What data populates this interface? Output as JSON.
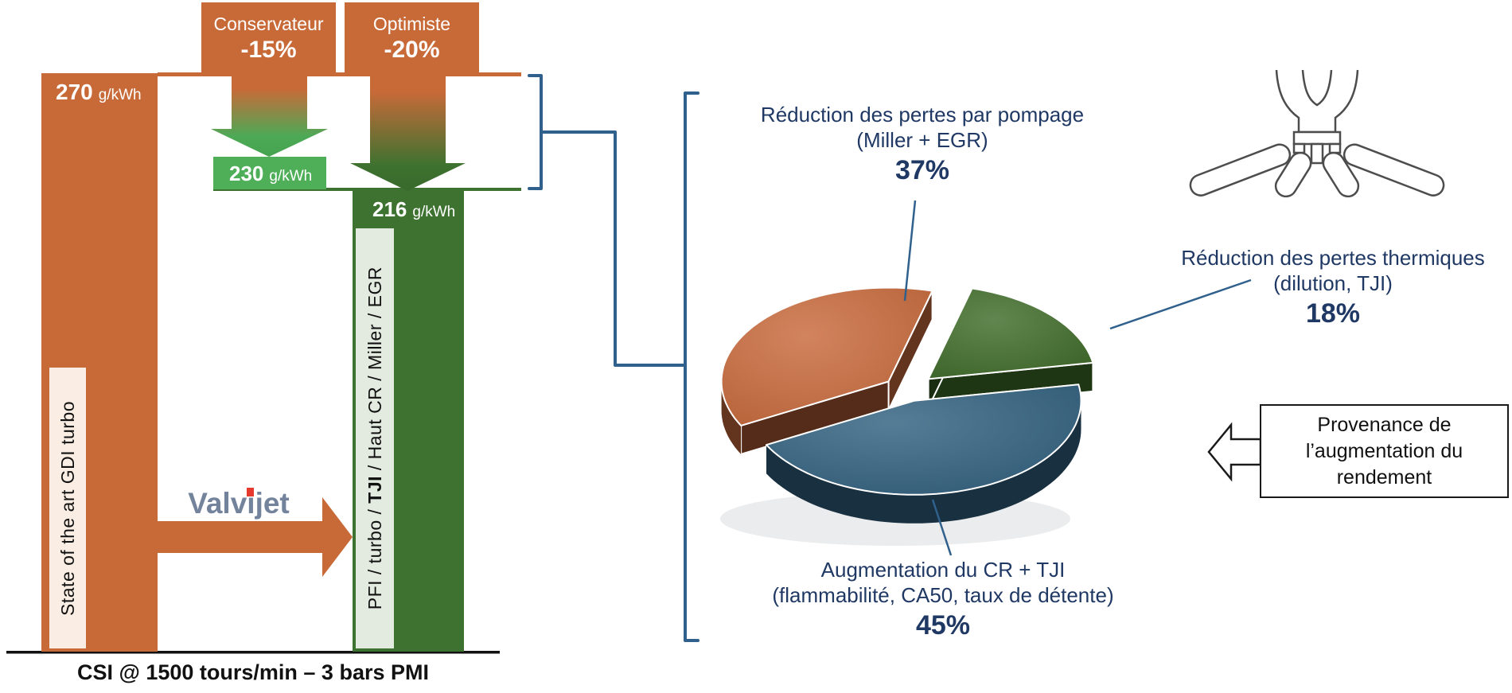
{
  "chart_data": [
    {
      "type": "pie",
      "style": "3d-exploded",
      "title": "",
      "labels": [
        "Réduction des pertes par pompage (Miller + EGR)",
        "Réduction des pertes thermiques (dilution, TJI)",
        "Augmentation du CR + TJI (flammabilité, CA50, taux de détente)"
      ],
      "values": [
        37,
        18,
        45
      ],
      "colors": [
        "#C8693B",
        "#3E6B28",
        "#31607F"
      ],
      "legend": "none",
      "label_blocks": [
        {
          "lines": [
            "Réduction des pertes par pompage",
            "(Miller + EGR)"
          ],
          "pct": "37%"
        },
        {
          "lines": [
            "Réduction des pertes thermiques",
            "(dilution, TJI)"
          ],
          "pct": "18%"
        },
        {
          "lines": [
            "Augmentation du CR + TJI",
            "(flammabilité, CA50, taux de détente)"
          ],
          "pct": "45%"
        }
      ]
    },
    {
      "type": "bar",
      "title": "CSI @ 1500 tours/min – 3 bars PMI",
      "categories": [
        "State of the art GDI turbo",
        "PFI / turbo / TJI / Haut CR / Miller / EGR"
      ],
      "values": [
        270,
        230,
        216
      ],
      "unit": "g/kWh",
      "ylim": [
        0,
        270
      ],
      "scenarios": [
        {
          "name": "Conservateur",
          "delta": "-15%"
        },
        {
          "name": "Optimiste",
          "delta": "-20%"
        }
      ]
    }
  ],
  "left_chart": {
    "ref_value": "270",
    "mid_value": "230",
    "result_value": "216",
    "unit": "g/kWh",
    "result_label_parts": {
      "prefix": "PFI / turbo / ",
      "bold": "TJI",
      "suffix": " / Haut CR / Miller / EGR"
    },
    "brand": {
      "part1": "Valv",
      "i": "i",
      "part2": "jet"
    }
  },
  "callout": {
    "line1": "Provenance de",
    "line2": "l’augmentation du",
    "line3": "rendement"
  },
  "colors": {
    "orange": "#C86A38",
    "mid_green": "#4FAE58",
    "dark_green": "#3E7230",
    "navy_text": "#1F3864",
    "connector_blue": "#30608C",
    "brand_slate": "#72839B",
    "brand_red": "#E63A2E"
  }
}
